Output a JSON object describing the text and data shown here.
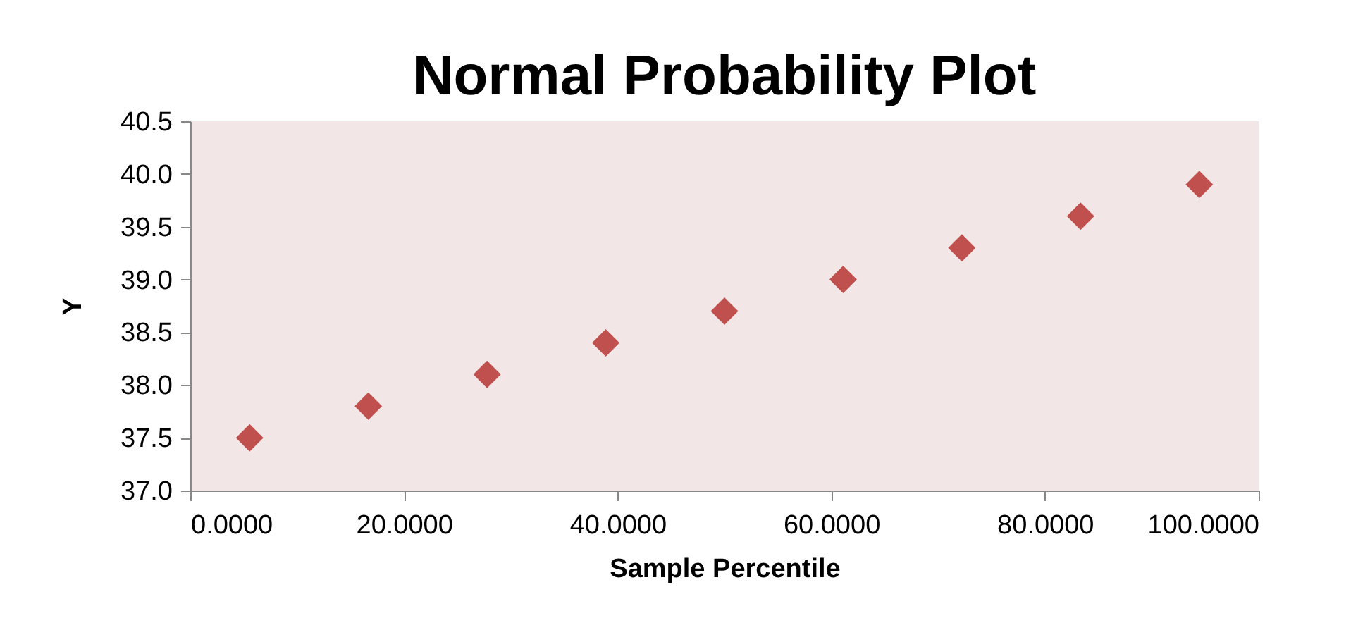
{
  "chart_data": {
    "type": "scatter",
    "title": "Normal Probability Plot",
    "xlabel": "Sample Percentile",
    "ylabel": "Y",
    "x": [
      5.5556,
      16.6667,
      27.7778,
      38.8889,
      50,
      61.1111,
      72.2222,
      83.3333,
      94.4444
    ],
    "series": [
      {
        "color": "#c0504d",
        "values": [
          37.5,
          37.8,
          38.1,
          38.4,
          38.7,
          39.0,
          39.3,
          39.6,
          39.9
        ]
      }
    ],
    "xlim": [
      0,
      100
    ],
    "xticks": [
      {
        "value": 0,
        "label": "0.0000"
      },
      {
        "value": 20,
        "label": "20.0000"
      },
      {
        "value": 40,
        "label": "40.0000"
      },
      {
        "value": 60,
        "label": "60.0000"
      },
      {
        "value": 80,
        "label": "80.0000"
      },
      {
        "value": 100,
        "label": "100.0000"
      }
    ],
    "ylim": [
      37,
      40.5
    ],
    "yticks": [
      {
        "value": 37,
        "label": "37.0"
      },
      {
        "value": 37.5,
        "label": "37.5"
      },
      {
        "value": 38,
        "label": "38.0"
      },
      {
        "value": 38.5,
        "label": "38.5"
      },
      {
        "value": 39,
        "label": "39.0"
      },
      {
        "value": 39.5,
        "label": "39.5"
      },
      {
        "value": 40,
        "label": "40.0"
      },
      {
        "value": 40.5,
        "label": "40.5"
      }
    ],
    "grid": false,
    "marker": "diamond"
  }
}
